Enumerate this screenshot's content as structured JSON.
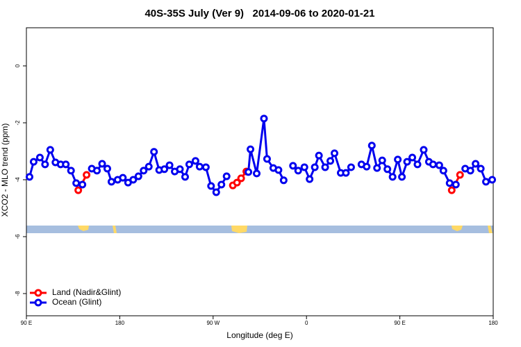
{
  "chart_data": {
    "type": "line",
    "title": "40S-35S July (Ver 9)   2014-09-06 to 2020-01-21",
    "x_label": "Longitude (deg E)",
    "y_label": "XCO2 - MLO trend (ppm)",
    "xlim": [
      90,
      540
    ],
    "xticks": [
      {
        "value": 90,
        "label": "90 E"
      },
      {
        "value": 180,
        "label": "180"
      },
      {
        "value": 270,
        "label": "90 W"
      },
      {
        "value": 360,
        "label": "0"
      },
      {
        "value": 450,
        "label": "90 E"
      },
      {
        "value": 540,
        "label": "180"
      }
    ],
    "ylim": [
      1.34,
      -8.78
    ],
    "yticks": [
      0,
      -2,
      -4,
      -6,
      -8
    ],
    "legend": "bottom-left",
    "series": [
      {
        "name": "Land (Nadir&Glint)",
        "color": "#ff0000",
        "x": [
          140,
          148,
          null,
          289,
          293,
          297,
          302,
          null,
          500,
          508
        ],
        "values": [
          -4.37,
          -3.83,
          null,
          -4.2,
          -4.1,
          -3.95,
          -3.71,
          null,
          -4.37,
          -3.83
        ]
      },
      {
        "name": "Ocean (Glint)",
        "color": "#0000ee",
        "x": [
          93,
          97,
          103,
          108,
          113,
          118,
          123,
          128,
          133,
          138,
          144,
          null,
          153,
          158,
          163,
          168,
          172,
          178,
          183,
          188,
          193,
          198,
          203,
          208,
          213,
          218,
          223,
          228,
          233,
          238,
          243,
          247,
          253,
          257,
          263,
          268,
          273,
          278,
          283,
          null,
          304,
          306,
          312,
          319,
          322,
          328,
          333,
          338,
          null,
          347,
          352,
          358,
          363,
          368,
          372,
          378,
          383,
          387,
          393,
          398,
          403,
          null,
          413,
          418,
          423,
          428,
          433,
          438,
          443,
          448,
          452,
          457,
          462,
          467,
          473,
          478,
          482,
          488,
          492,
          498,
          504,
          null,
          513,
          518,
          523,
          528,
          533,
          539
        ],
        "values": [
          -3.9,
          -3.37,
          -3.22,
          -3.46,
          -2.95,
          -3.39,
          -3.46,
          -3.46,
          -3.68,
          -4.12,
          -4.17,
          null,
          -3.61,
          -3.68,
          -3.44,
          -3.61,
          -4.07,
          -4.0,
          -3.93,
          -4.1,
          -4.0,
          -3.88,
          -3.68,
          -3.54,
          -3.02,
          -3.66,
          -3.63,
          -3.49,
          -3.71,
          -3.63,
          -3.9,
          -3.46,
          -3.34,
          -3.54,
          -3.56,
          -4.22,
          -4.44,
          -4.17,
          -3.88,
          null,
          -3.73,
          -2.93,
          -3.78,
          -1.85,
          -3.27,
          -3.59,
          -3.66,
          -4.02,
          null,
          -3.51,
          -3.68,
          -3.56,
          -3.98,
          -3.56,
          -3.15,
          -3.56,
          -3.34,
          -3.07,
          -3.76,
          -3.76,
          -3.56,
          null,
          -3.46,
          -3.54,
          -2.8,
          -3.59,
          -3.32,
          -3.63,
          -3.9,
          -3.29,
          -3.9,
          -3.37,
          -3.22,
          -3.46,
          -2.95,
          -3.37,
          -3.46,
          -3.49,
          -3.68,
          -4.12,
          -4.17,
          null,
          -3.61,
          -3.68,
          -3.44,
          -3.61,
          -4.07,
          -4.0
        ]
      }
    ]
  }
}
